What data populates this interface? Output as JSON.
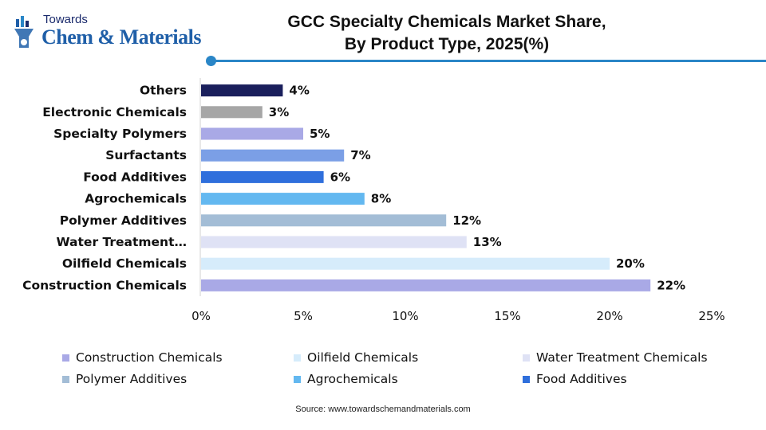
{
  "brand": {
    "small": "Towards",
    "big": "Chem & Materials"
  },
  "title_line1": "GCC Specialty Chemicals Market Share,",
  "title_line2": "By Product Type, 2025(%)",
  "source": "Source: www.towardschemandmaterials.com",
  "colors": {
    "accent": "#2a86c7",
    "brand": "#1f5fa8"
  },
  "chart_data": {
    "type": "bar",
    "orientation": "horizontal",
    "categories": [
      "Others",
      "Electronic Chemicals",
      "Specialty Polymers",
      "Surfactants",
      "Food Additives",
      "Agrochemicals",
      "Polymer Additives",
      "Water Treatment…",
      "Oilfield Chemicals",
      "Construction Chemicals"
    ],
    "values": [
      4,
      3,
      5,
      7,
      6,
      8,
      12,
      13,
      20,
      22
    ],
    "data_labels": [
      "4%",
      "3%",
      "5%",
      "7%",
      "6%",
      "8%",
      "12%",
      "13%",
      "20%",
      "22%"
    ],
    "colors": [
      "#1a1f5c",
      "#a6a6a6",
      "#a9a9e6",
      "#7b9fe6",
      "#2f6fdc",
      "#63b8f0",
      "#a3bdd6",
      "#dfe2f5",
      "#d6ecfb",
      "#a9a9e6"
    ],
    "xlim": [
      0,
      25
    ],
    "xticks": [
      "0%",
      "5%",
      "10%",
      "15%",
      "20%",
      "25%"
    ],
    "grid": false,
    "legend_position": "bottom",
    "legend": [
      {
        "label": "Construction Chemicals",
        "color": "#a9a9e6"
      },
      {
        "label": "Oilfield Chemicals",
        "color": "#d6ecfb"
      },
      {
        "label": "Water Treatment Chemicals",
        "color": "#dfe2f5"
      },
      {
        "label": "Polymer Additives",
        "color": "#a3bdd6"
      },
      {
        "label": "Agrochemicals",
        "color": "#63b8f0"
      },
      {
        "label": "Food Additives",
        "color": "#2f6fdc"
      }
    ]
  }
}
